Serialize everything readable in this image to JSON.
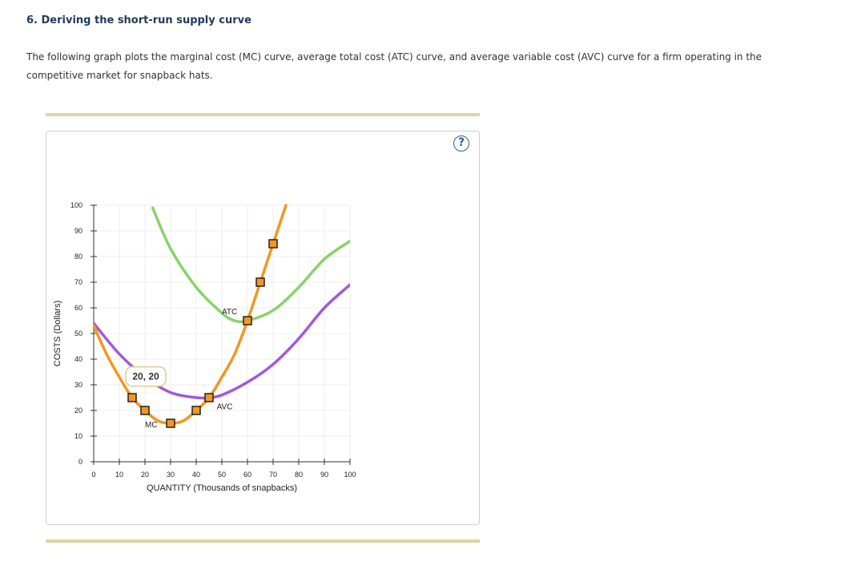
{
  "title": "6. Deriving the short-run supply curve",
  "description": "The following graph plots the marginal cost (MC) curve, average total cost (ATC) curve, and average variable cost (AVC) curve for a firm operating in the competitive market for snapback hats.",
  "help_label": "?",
  "chart_data": {
    "type": "line",
    "xlabel": "QUANTITY (Thousands of snapbacks)",
    "ylabel": "COSTS (Dollars)",
    "xlim": [
      0,
      100
    ],
    "ylim": [
      0,
      100
    ],
    "xticks": [
      "0",
      "10",
      "20",
      "30",
      "40",
      "50",
      "60",
      "70",
      "80",
      "90",
      "100"
    ],
    "yticks": [
      "0",
      "10",
      "20",
      "30",
      "40",
      "50",
      "60",
      "70",
      "80",
      "90",
      "100"
    ],
    "grid": true,
    "series": [
      {
        "name": "MC",
        "color": "#f5961f",
        "x": [
          0,
          5,
          10,
          15,
          20,
          25,
          30,
          35,
          40,
          45,
          50,
          55,
          60,
          65,
          70,
          75
        ],
        "y": [
          53,
          42,
          33,
          25,
          20,
          16,
          15,
          16,
          20,
          25,
          33,
          42,
          55,
          70,
          85,
          100
        ]
      },
      {
        "name": "AVC",
        "color": "#a259d9",
        "x": [
          0,
          10,
          20,
          30,
          40,
          45,
          50,
          60,
          70,
          80,
          90,
          100
        ],
        "y": [
          54,
          42,
          33,
          27,
          25,
          25,
          26,
          31,
          38,
          48,
          60,
          69
        ]
      },
      {
        "name": "ATC",
        "color": "#86d468",
        "x": [
          23,
          30,
          40,
          50,
          55,
          60,
          70,
          80,
          90,
          100
        ],
        "y": [
          99,
          83,
          68,
          58,
          55,
          55,
          59,
          68,
          79,
          86
        ]
      }
    ],
    "mc_points": [
      {
        "x": 15,
        "y": 25
      },
      {
        "x": 20,
        "y": 20
      },
      {
        "x": 30,
        "y": 15
      },
      {
        "x": 40,
        "y": 20
      },
      {
        "x": 45,
        "y": 25
      },
      {
        "x": 60,
        "y": 55
      },
      {
        "x": 65,
        "y": 70
      },
      {
        "x": 70,
        "y": 85
      }
    ],
    "annotations": {
      "mc_label": "MC",
      "avc_label": "AVC",
      "atc_label": "ATC",
      "tooltip": "20, 20"
    }
  }
}
